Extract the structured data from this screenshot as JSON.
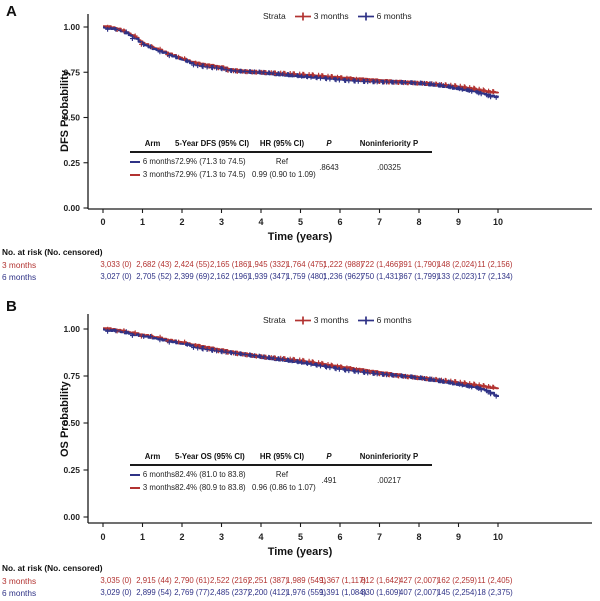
{
  "figure": {
    "panels": [
      {
        "label": "A",
        "y_axis_label": "DFS Probability",
        "x_axis_label": "Time (years)",
        "y_ticks": [
          "1.00",
          "0.75",
          "0.50",
          "0.25",
          "0.00"
        ],
        "x_ticks": [
          "0",
          "1",
          "2",
          "3",
          "4",
          "5",
          "6",
          "7",
          "8",
          "9",
          "10"
        ],
        "legend": {
          "title": "Strata",
          "items": [
            {
              "label": "3 months",
              "color": "#b23331"
            },
            {
              "label": "6 months",
              "color": "#2f3286"
            }
          ]
        },
        "stats_table": {
          "headers": [
            "Arm",
            "5-Year DFS (95% CI)",
            "HR (95% CI)",
            "P",
            "Noninferiority P"
          ],
          "rows": [
            {
              "arm": "6 months",
              "color": "#2f3286",
              "estimate": "72.9% (71.3 to 74.5)",
              "hr": "Ref"
            },
            {
              "arm": "3 months",
              "color": "#b23331",
              "estimate": "72.9% (71.3 to 74.5)",
              "hr": "0.99 (0.90 to 1.09)"
            }
          ],
          "p_value": ".8643",
          "noninferiority_p": ".00325"
        },
        "risk_table": {
          "title": "No. at risk (No. censored)",
          "rows": [
            {
              "label": "3 months",
              "color": "#b23331",
              "values": [
                "3,033 (0)",
                "2,682 (43)",
                "2,424 (55)",
                "2,165 (186)",
                "1,945 (332)",
                "1,764 (475)",
                "1,222 (988)",
                "722 (1,466)",
                "391 (1,790)",
                "148 (2,024)",
                "11 (2,156)"
              ]
            },
            {
              "label": "6 months",
              "color": "#2f3286",
              "values": [
                "3,027 (0)",
                "2,705 (52)",
                "2,399 (69)",
                "2,162 (196)",
                "1,939 (347)",
                "1,759 (480)",
                "1,236 (962)",
                "750 (1,431)",
                "367 (1,799)",
                "133 (2,023)",
                "17 (2,134)"
              ]
            }
          ]
        }
      },
      {
        "label": "B",
        "y_axis_label": "OS Probability",
        "x_axis_label": "Time (years)",
        "y_ticks": [
          "1.00",
          "0.75",
          "0.50",
          "0.25",
          "0.00"
        ],
        "x_ticks": [
          "0",
          "1",
          "2",
          "3",
          "4",
          "5",
          "6",
          "7",
          "8",
          "9",
          "10"
        ],
        "legend": {
          "title": "Strata",
          "items": [
            {
              "label": "3 months",
              "color": "#b23331"
            },
            {
              "label": "6 months",
              "color": "#2f3286"
            }
          ]
        },
        "stats_table": {
          "headers": [
            "Arm",
            "5-Year OS (95% CI)",
            "HR (95% CI)",
            "P",
            "Noninferiority P"
          ],
          "rows": [
            {
              "arm": "6 months",
              "color": "#2f3286",
              "estimate": "82.4% (81.0 to 83.8)",
              "hr": "Ref"
            },
            {
              "arm": "3 months",
              "color": "#b23331",
              "estimate": "82.4% (80.9 to 83.8)",
              "hr": "0.96 (0.86 to 1.07)"
            }
          ],
          "p_value": ".491",
          "noninferiority_p": ".00217"
        },
        "risk_table": {
          "title": "No. at risk (No. censored)",
          "rows": [
            {
              "label": "3 months",
              "color": "#b23331",
              "values": [
                "3,035 (0)",
                "2,915 (44)",
                "2,790 (61)",
                "2,522 (216)",
                "2,251 (387)",
                "1,989 (549)",
                "1,367 (1,117)",
                "812 (1,642)",
                "427 (2,007)",
                "162 (2,259)",
                "11 (2,405)"
              ]
            },
            {
              "label": "6 months",
              "color": "#2f3286",
              "values": [
                "3,029 (0)",
                "2,899 (54)",
                "2,769 (77)",
                "2,485 (237)",
                "2,200 (412)",
                "1,976 (559)",
                "1,391 (1,084)",
                "830 (1,609)",
                "407 (2,007)",
                "145 (2,254)",
                "18 (2,375)"
              ]
            }
          ]
        }
      }
    ]
  },
  "chart_data": [
    {
      "type": "line",
      "subtype": "kaplan-meier-step",
      "xlabel": "Time (years)",
      "ylabel": "DFS Probability",
      "xlim": [
        0,
        10
      ],
      "ylim": [
        0,
        1
      ],
      "y_tick_values": [
        1.0,
        0.75,
        0.5,
        0.25,
        0.0
      ],
      "x_tick_values": [
        0,
        1,
        2,
        3,
        4,
        5,
        6,
        7,
        8,
        9,
        10
      ],
      "legend_position": "top",
      "grid": false,
      "series": [
        {
          "name": "3 months",
          "color": "#b23331",
          "points": [
            [
              0,
              1.0
            ],
            [
              0.2,
              0.995
            ],
            [
              0.4,
              0.985
            ],
            [
              0.6,
              0.966
            ],
            [
              0.8,
              0.942
            ],
            [
              1.0,
              0.908
            ],
            [
              1.2,
              0.888
            ],
            [
              1.4,
              0.871
            ],
            [
              1.6,
              0.855
            ],
            [
              1.8,
              0.838
            ],
            [
              2.0,
              0.822
            ],
            [
              2.2,
              0.806
            ],
            [
              2.4,
              0.796
            ],
            [
              2.6,
              0.788
            ],
            [
              2.8,
              0.782
            ],
            [
              3.0,
              0.776
            ],
            [
              3.2,
              0.763
            ],
            [
              3.4,
              0.758
            ],
            [
              3.7,
              0.752
            ],
            [
              4.0,
              0.747
            ],
            [
              4.4,
              0.739
            ],
            [
              4.7,
              0.734
            ],
            [
              5.0,
              0.729
            ],
            [
              5.4,
              0.724
            ],
            [
              5.8,
              0.719
            ],
            [
              6.2,
              0.713
            ],
            [
              6.6,
              0.708
            ],
            [
              7.0,
              0.702
            ],
            [
              7.4,
              0.697
            ],
            [
              7.8,
              0.691
            ],
            [
              8.2,
              0.684
            ],
            [
              8.6,
              0.674
            ],
            [
              9.0,
              0.663
            ],
            [
              9.3,
              0.654
            ],
            [
              9.5,
              0.648
            ],
            [
              9.65,
              0.641
            ],
            [
              9.8,
              0.637
            ],
            [
              10,
              0.635
            ]
          ]
        },
        {
          "name": "6 months",
          "color": "#2f3286",
          "points": [
            [
              0,
              1.0
            ],
            [
              0.2,
              0.995
            ],
            [
              0.4,
              0.985
            ],
            [
              0.6,
              0.966
            ],
            [
              0.8,
              0.942
            ],
            [
              1.0,
              0.908
            ],
            [
              1.2,
              0.888
            ],
            [
              1.4,
              0.871
            ],
            [
              1.6,
              0.855
            ],
            [
              1.8,
              0.838
            ],
            [
              2.0,
              0.822
            ],
            [
              2.2,
              0.806
            ],
            [
              2.4,
              0.796
            ],
            [
              2.6,
              0.788
            ],
            [
              2.8,
              0.782
            ],
            [
              3.0,
              0.776
            ],
            [
              3.2,
              0.763
            ],
            [
              3.4,
              0.758
            ],
            [
              3.7,
              0.752
            ],
            [
              4.0,
              0.747
            ],
            [
              4.4,
              0.739
            ],
            [
              4.7,
              0.734
            ],
            [
              5.0,
              0.729
            ],
            [
              5.4,
              0.724
            ],
            [
              5.8,
              0.719
            ],
            [
              6.2,
              0.713
            ],
            [
              6.6,
              0.708
            ],
            [
              7.0,
              0.702
            ],
            [
              7.4,
              0.697
            ],
            [
              7.8,
              0.691
            ],
            [
              8.2,
              0.684
            ],
            [
              8.6,
              0.674
            ],
            [
              9.0,
              0.66
            ],
            [
              9.3,
              0.65
            ],
            [
              9.5,
              0.641
            ],
            [
              9.7,
              0.63
            ],
            [
              9.85,
              0.621
            ],
            [
              10,
              0.616
            ]
          ]
        }
      ],
      "annotations": {
        "five_year_estimates": [
          {
            "arm": "6 months",
            "value": "72.9% (71.3 to 74.5)"
          },
          {
            "arm": "3 months",
            "value": "72.9% (71.3 to 74.5)"
          }
        ],
        "hazard_ratio": "0.99 (0.90 to 1.09)",
        "p": ".8643",
        "noninferiority_p": ".00325"
      },
      "at_risk": {
        "times": [
          0,
          1,
          2,
          3,
          4,
          5,
          6,
          7,
          8,
          9,
          10
        ],
        "rows": [
          {
            "name": "3 months",
            "values": [
              "3,033 (0)",
              "2,682 (43)",
              "2,424 (55)",
              "2,165 (186)",
              "1,945 (332)",
              "1,764 (475)",
              "1,222 (988)",
              "722 (1,466)",
              "391 (1,790)",
              "148 (2,024)",
              "11 (2,156)"
            ]
          },
          {
            "name": "6 months",
            "values": [
              "3,027 (0)",
              "2,705 (52)",
              "2,399 (69)",
              "2,162 (196)",
              "1,939 (347)",
              "1,759 (480)",
              "1,236 (962)",
              "750 (1,431)",
              "367 (1,799)",
              "133 (2,023)",
              "17 (2,134)"
            ]
          }
        ]
      }
    },
    {
      "type": "line",
      "subtype": "kaplan-meier-step",
      "xlabel": "Time (years)",
      "ylabel": "OS Probability",
      "xlim": [
        0,
        10
      ],
      "ylim": [
        0,
        1
      ],
      "y_tick_values": [
        1.0,
        0.75,
        0.5,
        0.25,
        0.0
      ],
      "x_tick_values": [
        0,
        1,
        2,
        3,
        4,
        5,
        6,
        7,
        8,
        9,
        10
      ],
      "legend_position": "top",
      "grid": false,
      "series": [
        {
          "name": "3 months",
          "color": "#b23331",
          "points": [
            [
              0,
              1.0
            ],
            [
              0.3,
              0.993
            ],
            [
              0.6,
              0.981
            ],
            [
              1.0,
              0.965
            ],
            [
              1.4,
              0.949
            ],
            [
              1.8,
              0.932
            ],
            [
              2.2,
              0.916
            ],
            [
              2.6,
              0.9
            ],
            [
              3.0,
              0.885
            ],
            [
              3.4,
              0.871
            ],
            [
              3.8,
              0.857
            ],
            [
              4.2,
              0.844
            ],
            [
              4.6,
              0.834
            ],
            [
              5.0,
              0.824
            ],
            [
              5.4,
              0.812
            ],
            [
              5.8,
              0.8
            ],
            [
              6.2,
              0.789
            ],
            [
              6.6,
              0.778
            ],
            [
              7.0,
              0.766
            ],
            [
              7.4,
              0.755
            ],
            [
              7.8,
              0.744
            ],
            [
              8.2,
              0.732
            ],
            [
              8.6,
              0.72
            ],
            [
              9.0,
              0.708
            ],
            [
              9.3,
              0.699
            ],
            [
              9.5,
              0.694
            ],
            [
              9.7,
              0.688
            ],
            [
              9.85,
              0.684
            ],
            [
              10,
              0.682
            ]
          ]
        },
        {
          "name": "6 months",
          "color": "#2f3286",
          "points": [
            [
              0,
              1.0
            ],
            [
              0.3,
              0.993
            ],
            [
              0.6,
              0.981
            ],
            [
              1.0,
              0.965
            ],
            [
              1.4,
              0.949
            ],
            [
              1.8,
              0.932
            ],
            [
              2.2,
              0.916
            ],
            [
              2.6,
              0.9
            ],
            [
              3.0,
              0.885
            ],
            [
              3.4,
              0.871
            ],
            [
              3.8,
              0.857
            ],
            [
              4.2,
              0.844
            ],
            [
              4.6,
              0.834
            ],
            [
              5.0,
              0.824
            ],
            [
              5.4,
              0.812
            ],
            [
              5.8,
              0.8
            ],
            [
              6.2,
              0.789
            ],
            [
              6.6,
              0.778
            ],
            [
              7.0,
              0.766
            ],
            [
              7.4,
              0.755
            ],
            [
              7.8,
              0.744
            ],
            [
              8.2,
              0.732
            ],
            [
              8.6,
              0.72
            ],
            [
              9.0,
              0.706
            ],
            [
              9.3,
              0.696
            ],
            [
              9.5,
              0.689
            ],
            [
              9.65,
              0.679
            ],
            [
              9.8,
              0.668
            ],
            [
              9.9,
              0.653
            ],
            [
              10,
              0.64
            ]
          ]
        }
      ],
      "annotations": {
        "five_year_estimates": [
          {
            "arm": "6 months",
            "value": "82.4% (81.0 to 83.8)"
          },
          {
            "arm": "3 months",
            "value": "82.4% (80.9 to 83.8)"
          }
        ],
        "hazard_ratio": "0.96 (0.86 to 1.07)",
        "p": ".491",
        "noninferiority_p": ".00217"
      },
      "at_risk": {
        "times": [
          0,
          1,
          2,
          3,
          4,
          5,
          6,
          7,
          8,
          9,
          10
        ],
        "rows": [
          {
            "name": "3 months",
            "values": [
              "3,035 (0)",
              "2,915 (44)",
              "2,790 (61)",
              "2,522 (216)",
              "2,251 (387)",
              "1,989 (549)",
              "1,367 (1,117)",
              "812 (1,642)",
              "427 (2,007)",
              "162 (2,259)",
              "11 (2,405)"
            ]
          },
          {
            "name": "6 months",
            "values": [
              "3,029 (0)",
              "2,899 (54)",
              "2,769 (77)",
              "2,485 (237)",
              "2,200 (412)",
              "1,976 (559)",
              "1,391 (1,084)",
              "830 (1,609)",
              "407 (2,007)",
              "145 (2,254)",
              "18 (2,375)"
            ]
          }
        ]
      }
    }
  ]
}
